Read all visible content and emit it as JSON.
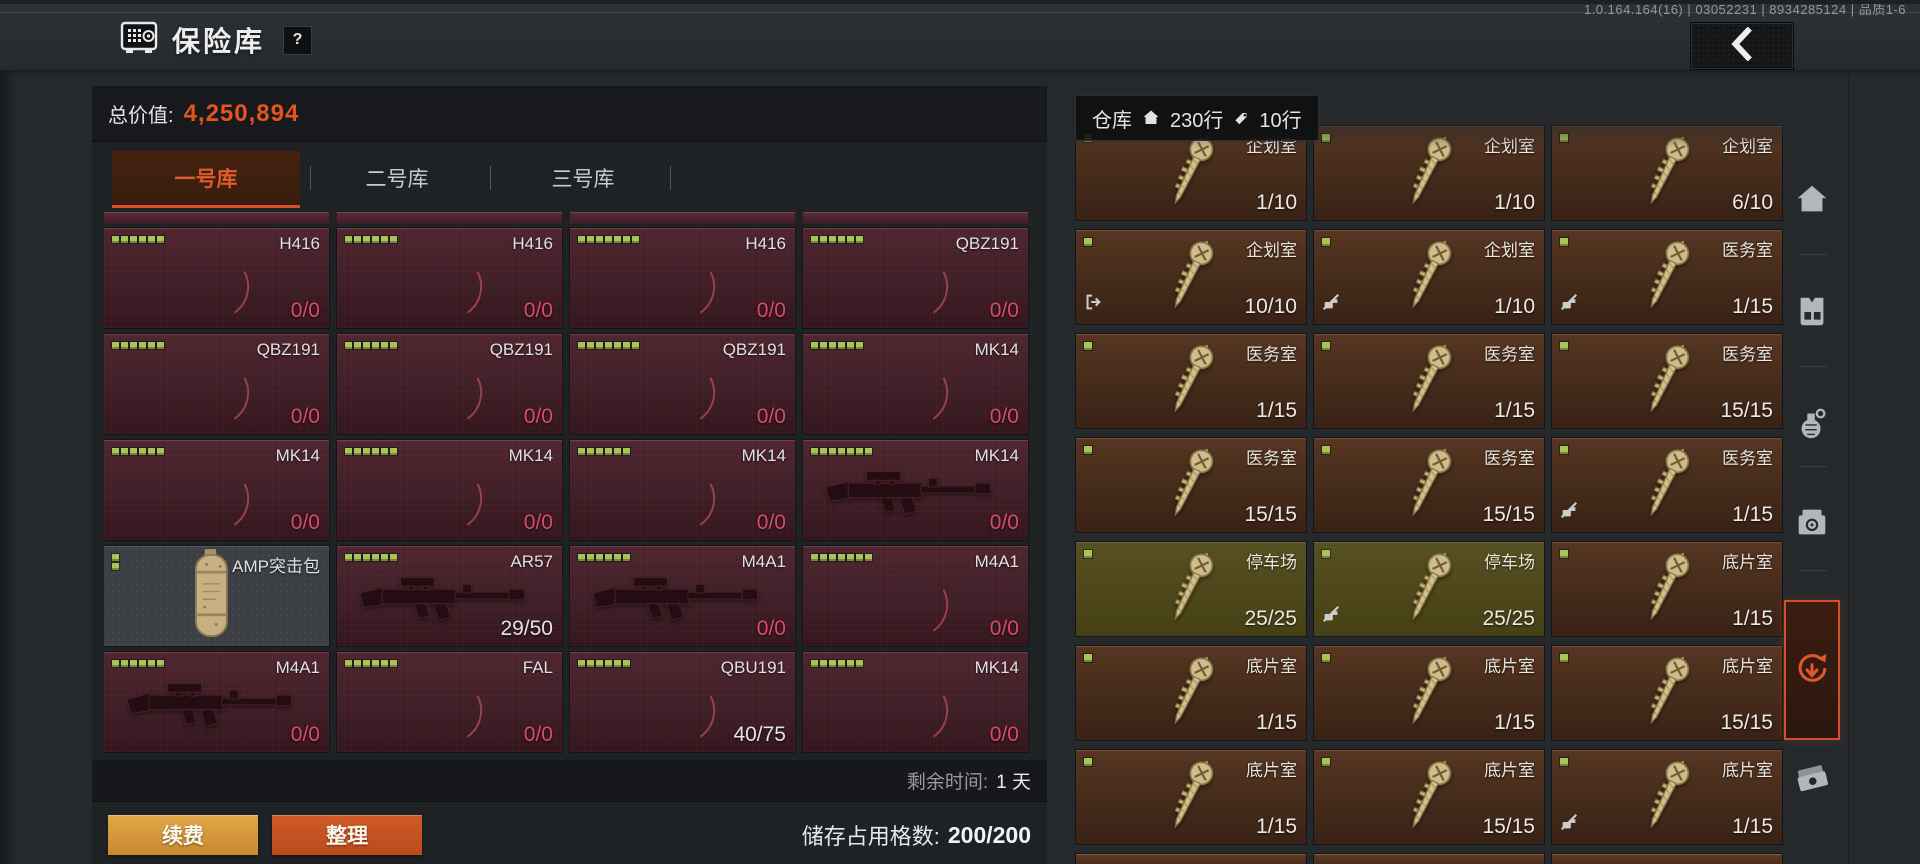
{
  "topbar": {
    "title": "保险库",
    "help_label": "?",
    "version": "1.0.164.164(16) | 03052231 | 8934285124 | 品质1-6"
  },
  "vault": {
    "total_label": "总价值:",
    "total_value": "4,250,894",
    "tabs": [
      {
        "label": "一号库",
        "active": true
      },
      {
        "label": "二号库",
        "active": false
      },
      {
        "label": "三号库",
        "active": false
      }
    ],
    "items": [
      {
        "name": "H416",
        "count": "0/0",
        "zero": true,
        "image": "ghost",
        "pips": 6
      },
      {
        "name": "H416",
        "count": "0/0",
        "zero": true,
        "image": "ghost",
        "pips": 6
      },
      {
        "name": "H416",
        "count": "0/0",
        "zero": true,
        "image": "ghost",
        "pips": 7
      },
      {
        "name": "QBZ191",
        "count": "0/0",
        "zero": true,
        "image": "ghost",
        "pips": 6
      },
      {
        "name": "QBZ191",
        "count": "0/0",
        "zero": true,
        "image": "ghost",
        "pips": 6
      },
      {
        "name": "QBZ191",
        "count": "0/0",
        "zero": true,
        "image": "ghost",
        "pips": 6
      },
      {
        "name": "QBZ191",
        "count": "0/0",
        "zero": true,
        "image": "ghost",
        "pips": 7
      },
      {
        "name": "MK14",
        "count": "0/0",
        "zero": true,
        "image": "ghost",
        "pips": 6
      },
      {
        "name": "MK14",
        "count": "0/0",
        "zero": true,
        "image": "ghost",
        "pips": 6
      },
      {
        "name": "MK14",
        "count": "0/0",
        "zero": true,
        "image": "ghost",
        "pips": 6
      },
      {
        "name": "MK14",
        "count": "0/0",
        "zero": true,
        "image": "ghost",
        "pips": 6
      },
      {
        "name": "MK14",
        "count": "0/0",
        "zero": true,
        "image": "rifle",
        "pips": 7
      },
      {
        "name": "AMP突击包",
        "count": "",
        "zero": false,
        "image": "bag",
        "pips": 2,
        "gray": true
      },
      {
        "name": "AR57",
        "count": "29/50",
        "zero": false,
        "image": "rifle",
        "pips": 6
      },
      {
        "name": "M4A1",
        "count": "0/0",
        "zero": true,
        "image": "rifle",
        "pips": 6
      },
      {
        "name": "M4A1",
        "count": "0/0",
        "zero": true,
        "image": "ghost",
        "pips": 7
      },
      {
        "name": "M4A1",
        "count": "0/0",
        "zero": true,
        "image": "rifle",
        "pips": 6
      },
      {
        "name": "FAL",
        "count": "0/0",
        "zero": true,
        "image": "ghost",
        "pips": 6
      },
      {
        "name": "QBU191",
        "count": "40/75",
        "zero": false,
        "image": "ghost",
        "pips": 6
      },
      {
        "name": "MK14",
        "count": "0/0",
        "zero": true,
        "image": "ghost",
        "pips": 6
      }
    ],
    "remaining_label": "剩余时间:",
    "remaining_value": "1 天",
    "renew_label": "续费",
    "sort_label": "整理",
    "storage_label": "储存占用格数:",
    "storage_value": "200/200"
  },
  "warehouse": {
    "title": "仓库",
    "house_rows": "230行",
    "tag_rows": "10行",
    "rows": [
      [
        {
          "label": "企划室",
          "count": "1/10",
          "variant": "brown",
          "corner": null
        },
        {
          "label": "企划室",
          "count": "1/10",
          "variant": "brown",
          "corner": null
        },
        {
          "label": "企划室",
          "count": "6/10",
          "variant": "brown",
          "corner": null
        }
      ],
      [
        {
          "label": "企划室",
          "count": "10/10",
          "variant": "brown",
          "corner": "transfer-out"
        },
        {
          "label": "企划室",
          "count": "1/10",
          "variant": "brown",
          "corner": "non-tradeable"
        },
        {
          "label": "医务室",
          "count": "1/15",
          "variant": "brown",
          "corner": "non-tradeable"
        }
      ],
      [
        {
          "label": "医务室",
          "count": "1/15",
          "variant": "brown",
          "corner": null
        },
        {
          "label": "医务室",
          "count": "1/15",
          "variant": "brown",
          "corner": null
        },
        {
          "label": "医务室",
          "count": "15/15",
          "variant": "brown",
          "corner": null
        }
      ],
      [
        {
          "label": "医务室",
          "count": "15/15",
          "variant": "brown",
          "corner": null
        },
        {
          "label": "医务室",
          "count": "15/15",
          "variant": "brown",
          "corner": null
        },
        {
          "label": "医务室",
          "count": "1/15",
          "variant": "brown",
          "corner": "non-tradeable"
        }
      ],
      [
        {
          "label": "停车场",
          "count": "25/25",
          "variant": "olive",
          "corner": null
        },
        {
          "label": "停车场",
          "count": "25/25",
          "variant": "olive",
          "corner": "non-tradeable"
        },
        {
          "label": "底片室",
          "count": "1/15",
          "variant": "brown",
          "corner": null
        }
      ],
      [
        {
          "label": "底片室",
          "count": "1/15",
          "variant": "brown",
          "corner": null
        },
        {
          "label": "底片室",
          "count": "1/15",
          "variant": "brown",
          "corner": null
        },
        {
          "label": "底片室",
          "count": "15/15",
          "variant": "brown",
          "corner": null
        }
      ],
      [
        {
          "label": "底片室",
          "count": "1/15",
          "variant": "brown",
          "corner": null
        },
        {
          "label": "底片室",
          "count": "15/15",
          "variant": "brown",
          "corner": null
        },
        {
          "label": "底片室",
          "count": "1/15",
          "variant": "brown",
          "corner": "non-tradeable"
        }
      ]
    ]
  },
  "sidebar": {
    "icons": [
      {
        "name": "home-icon",
        "active": false
      },
      {
        "name": "vest-icon",
        "active": false
      },
      {
        "name": "grenade-icon",
        "active": false
      },
      {
        "name": "supply-box-icon",
        "active": false
      },
      {
        "name": "vault-deposit-icon",
        "active": true
      },
      {
        "name": "cash-icon",
        "active": false
      }
    ]
  },
  "colors": {
    "accent_orange": "#e05a2a",
    "total_value_orange": "#e6531f",
    "count_zero_red": "#dc4a6b",
    "pip_green": "#a6c557",
    "key_gold": "#cfbd8c",
    "active_border": "#d4502a",
    "cell_maroon": "#3f1f28",
    "cell_brown": "#452b1a",
    "cell_olive": "#4b451b"
  }
}
